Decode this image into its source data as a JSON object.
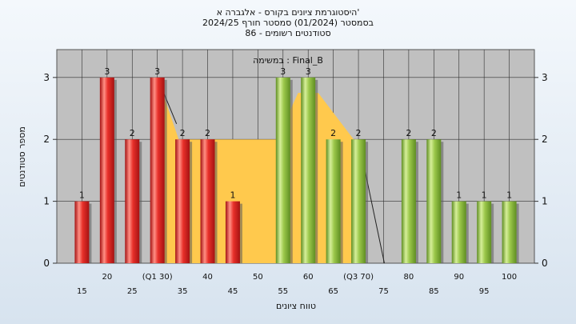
{
  "chart_data": {
    "type": "bar",
    "title_lines": [
      "היסטוגרמת ציונים בקורס - אלגברה א'",
      "בסמסטר  (01/2024)  סמסטר חורף 2024/25",
      "סטודנטים רשומים - 86"
    ],
    "annotation": "במשימה : Final_B",
    "xlabel": "טווח ציונים",
    "ylabel": "מספר סטודנטים",
    "ylim": [
      0,
      3
    ],
    "y_ticks": [
      "0",
      "1",
      "2",
      "3"
    ],
    "x_tick_labels": [
      "15",
      "20",
      "25",
      "(Q1 30)",
      "35",
      "40",
      "45",
      "50",
      "55",
      "60",
      "65",
      "(Q3 70)",
      "75",
      "80",
      "85",
      "90",
      "95",
      "100"
    ],
    "bins": [
      15,
      20,
      25,
      30,
      35,
      40,
      45,
      50,
      55,
      60,
      65,
      70,
      75,
      80,
      85,
      90,
      95,
      100
    ],
    "values": [
      1,
      3,
      2,
      3,
      2,
      2,
      1,
      0,
      3,
      3,
      2,
      2,
      0,
      2,
      2,
      1,
      1,
      1
    ],
    "bar_labels": [
      "1",
      "3",
      "2",
      "3",
      "2",
      "2",
      "1",
      "",
      "3",
      "3",
      "2",
      "2",
      "",
      "2",
      "2",
      "1",
      "1",
      "1"
    ],
    "bar_colors": [
      "red",
      "red",
      "red",
      "red",
      "red",
      "red",
      "red",
      "",
      "green",
      "green",
      "green",
      "green",
      "",
      "green",
      "green",
      "green",
      "green",
      "green"
    ],
    "quartile_box": {
      "q1": 30,
      "q3": 70,
      "level": 2
    },
    "colors": {
      "plot_bg": "#c0c0c0",
      "red": "#e8302a",
      "green": "#9cc84b",
      "box_fill": "#ffc94d",
      "grid": "#2f2f2f"
    },
    "grid": true
  }
}
